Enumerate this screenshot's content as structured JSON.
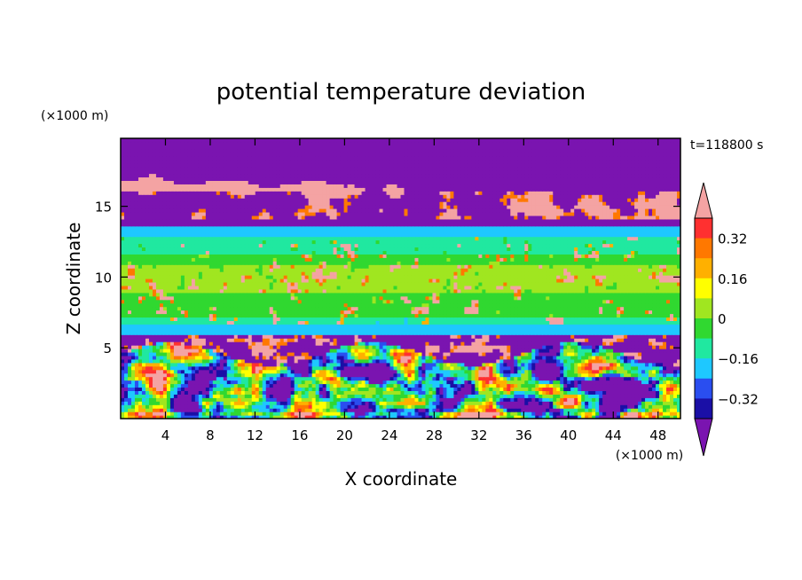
{
  "chart_data": {
    "type": "heatmap",
    "title": "potential temperature deviation",
    "time_label": "t=118800 s",
    "xlabel": "X coordinate",
    "ylabel": "Z coordinate",
    "x_unit": "(×1000 m)",
    "y_unit": "(×1000 m)",
    "xlim": [
      0,
      50
    ],
    "ylim": [
      0,
      19.8
    ],
    "x_ticks": [
      4,
      8,
      12,
      16,
      20,
      24,
      28,
      32,
      36,
      40,
      44,
      48
    ],
    "x_tick_labels": [
      "4",
      "8",
      "12",
      "16",
      "20",
      "24",
      "28",
      "32",
      "36",
      "40",
      "44",
      "48"
    ],
    "y_ticks": [
      5,
      10,
      15
    ],
    "y_tick_labels": [
      "5",
      "10",
      "15"
    ],
    "colorbar": {
      "levels": [
        -0.4,
        -0.32,
        -0.24,
        -0.16,
        -0.08,
        0,
        0.08,
        0.16,
        0.24,
        0.32,
        0.4
      ],
      "tick_values": [
        0.32,
        0.16,
        0,
        -0.16,
        -0.32
      ],
      "tick_labels": [
        "0.32",
        "0.16",
        "0",
        "−0.16",
        "−0.32"
      ],
      "colors": [
        "#7a14b0",
        "#1a0fa6",
        "#2a4ef0",
        "#1ec8ff",
        "#20e8a0",
        "#30d830",
        "#a0e620",
        "#ffff00",
        "#ffb000",
        "#ff7800",
        "#ff3030",
        "#f4a3a3"
      ],
      "extend": "both"
    },
    "layers": [
      {
        "z_range": [
          0,
          4.5
        ],
        "pattern": "turbulent plumes, mixed values −0.4 to 0.4"
      },
      {
        "z_range": [
          4.5,
          6
        ],
        "pattern": "mostly −0.4 with positive blobs"
      },
      {
        "z_range": [
          6,
          6.6
        ],
        "pattern": "≈ −0.2"
      },
      {
        "z_range": [
          6.6,
          12.8
        ],
        "pattern": "≈ 0 with scattered positive patches"
      },
      {
        "z_range": [
          12.8,
          13.5
        ],
        "pattern": "≈ −0.2"
      },
      {
        "z_range": [
          13.5,
          16
        ],
        "pattern": "≈ −0.4 with large positive cloud"
      },
      {
        "z_range": [
          16,
          19.8
        ],
        "pattern": "alternating −0.4 and > 0.4 bands"
      }
    ]
  }
}
